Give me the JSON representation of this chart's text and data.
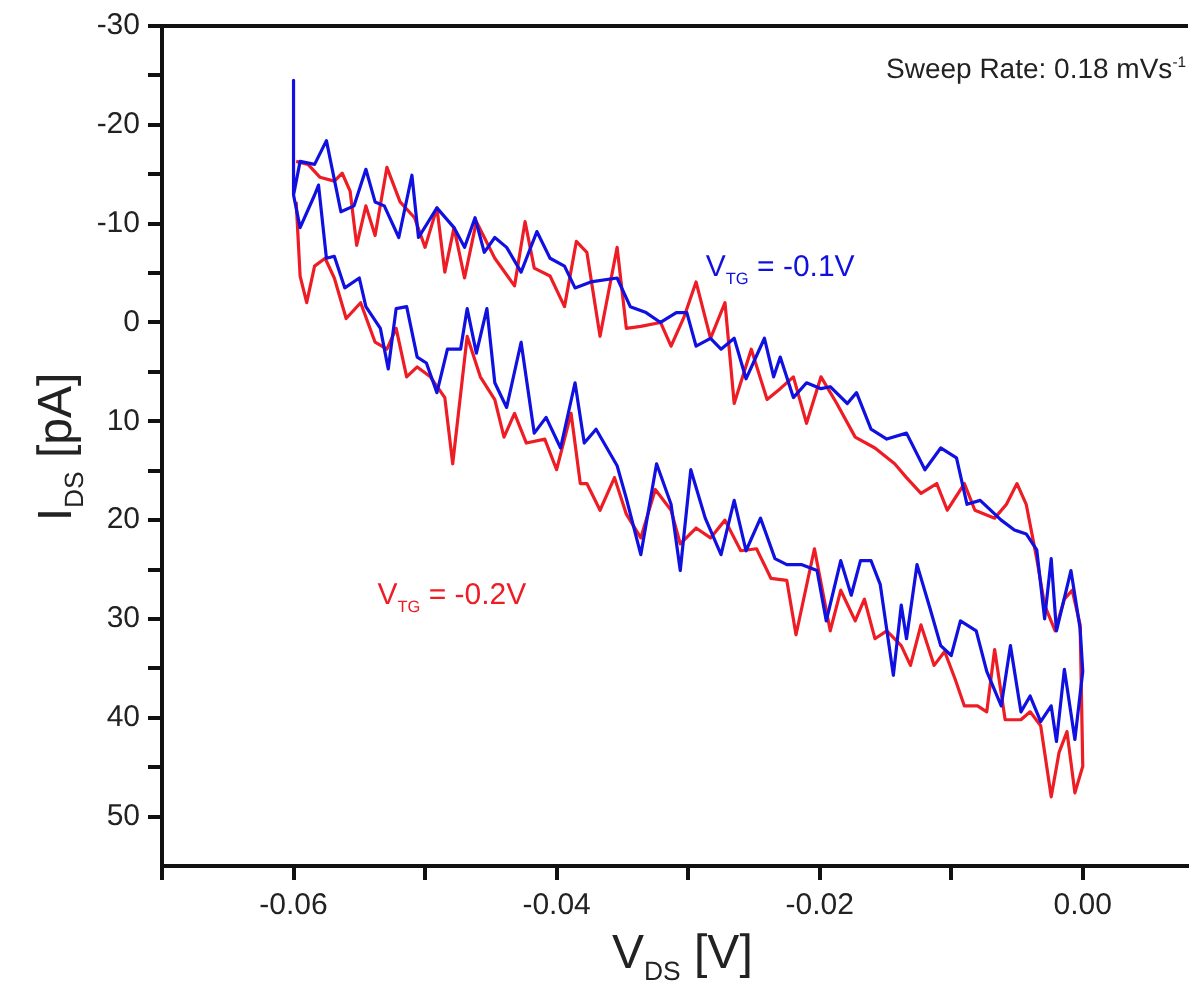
{
  "chart_data": {
    "type": "line",
    "xlabel": "V$_{DS}$ [V]",
    "ylabel": "I$_{DS}$ [pA]",
    "annotations": [
      "Sweep Rate: 0.18 mVs$^{-1}$"
    ],
    "xlim": [
      -0.07,
      0.008
    ],
    "ylim": [
      55,
      -30
    ],
    "xticks": [
      {
        "value": -0.07,
        "label": null
      },
      -0.06,
      {
        "value": -0.05,
        "label": null
      },
      -0.04,
      {
        "value": -0.03,
        "label": null
      },
      -0.02,
      {
        "value": -0.01,
        "label": null
      },
      {
        "value": 0,
        "label": "0.00"
      }
    ],
    "yticks": [
      -30,
      {
        "value": -25,
        "label": null
      },
      -20,
      {
        "value": -15,
        "label": null
      },
      -10,
      {
        "value": -5,
        "label": null
      },
      0,
      {
        "value": 5,
        "label": null
      },
      10,
      {
        "value": 15,
        "label": null
      },
      20,
      {
        "value": 25,
        "label": null
      },
      30,
      {
        "value": 35,
        "label": null
      },
      40,
      {
        "value": 45,
        "label": null
      },
      50
    ],
    "grid": false,
    "legend": false,
    "series": [
      {
        "name": "V$_{TG}$ = -0.1V",
        "color": "#1010e0",
        "x": [
          -0.06,
          -0.06,
          -0.0595,
          -0.0584,
          -0.0575,
          -0.0564,
          -0.0554,
          -0.0545,
          -0.0538,
          -0.0531,
          -0.052,
          -0.051,
          -0.0505,
          -0.0491,
          -0.0478,
          -0.047,
          -0.0462,
          -0.0455,
          -0.0447,
          -0.0438,
          -0.0427,
          -0.0415,
          -0.0405,
          -0.0394,
          -0.0386,
          -0.0374,
          -0.0354,
          -0.0344,
          -0.0332,
          -0.0321,
          -0.0309,
          -0.0301,
          -0.0294,
          -0.0283,
          -0.0275,
          -0.0265,
          -0.0256,
          -0.0242,
          -0.0235,
          -0.023,
          -0.022,
          -0.021,
          -0.0199,
          -0.0192,
          -0.0179,
          -0.0172,
          -0.0161,
          -0.0149,
          -0.0134,
          -0.012,
          -0.0108,
          -0.0096,
          -0.0088,
          -0.0078,
          -0.0062,
          -0.0052,
          -0.0043,
          -0.0035,
          -0.0029,
          -0.0024,
          -0.002,
          -0.0009,
          -0.0002,
          0,
          -0.0006,
          -0.0014,
          -0.002,
          -0.0024,
          -0.0032,
          -0.004,
          -0.0047,
          -0.0055,
          -0.0062,
          -0.0073,
          -0.0081,
          -0.0093,
          -0.01,
          -0.0108,
          -0.0116,
          -0.0126,
          -0.0134,
          -0.0138,
          -0.0144,
          -0.0154,
          -0.0161,
          -0.0169,
          -0.0176,
          -0.0184,
          -0.0195,
          -0.0202,
          -0.0214,
          -0.0225,
          -0.0234,
          -0.0245,
          -0.0256,
          -0.0265,
          -0.0275,
          -0.0287,
          -0.0298,
          -0.0306,
          -0.0313,
          -0.0324,
          -0.0336,
          -0.0347,
          -0.0354,
          -0.037,
          -0.0379,
          -0.0386,
          -0.0397,
          -0.0408,
          -0.0417,
          -0.0427,
          -0.0438,
          -0.0447,
          -0.0453,
          -0.0461,
          -0.0468,
          -0.0473,
          -0.0483,
          -0.0491,
          -0.0499,
          -0.0506,
          -0.0514,
          -0.0522,
          -0.0528,
          -0.0534,
          -0.0545,
          -0.055,
          -0.0561,
          -0.0569,
          -0.0575,
          -0.0581,
          -0.0584,
          -0.0595,
          -0.06
        ],
        "values": [
          -24.5,
          -12.9,
          -16.3,
          -16,
          -18.4,
          -11.2,
          -11.8,
          -15.5,
          -12.2,
          -11.8,
          -8.6,
          -14.9,
          -8.6,
          -11.6,
          -9.6,
          -7.6,
          -10.6,
          -7.1,
          -8.6,
          -7.6,
          -5.1,
          -9.2,
          -6.5,
          -5.7,
          -3.5,
          -4.1,
          -4.5,
          -1.6,
          -1,
          0,
          -1,
          -1,
          2.4,
          1.6,
          2.7,
          1.6,
          5.7,
          1.6,
          5.5,
          3.5,
          7.6,
          6.1,
          6.7,
          6.5,
          8.2,
          7.1,
          10.8,
          11.8,
          11.2,
          14.9,
          12.7,
          13.7,
          18.4,
          18,
          20,
          21,
          21.4,
          23,
          30,
          23.9,
          31.2,
          25.1,
          31,
          35.3,
          42.2,
          35.1,
          42.4,
          38.8,
          40.4,
          37.8,
          39.4,
          32.7,
          38.8,
          35.3,
          31.2,
          30.2,
          33.7,
          32.7,
          29,
          24.5,
          32,
          28.6,
          35.7,
          26.5,
          24.1,
          24.1,
          27.6,
          24.1,
          30.2,
          25.1,
          24.5,
          24.5,
          23.9,
          19.8,
          23.1,
          18,
          23.5,
          19.8,
          14.9,
          25.1,
          18.4,
          14.3,
          23.5,
          17.8,
          14.5,
          10.8,
          12.2,
          6.1,
          12.7,
          9.6,
          11.2,
          2,
          8.6,
          6.1,
          -1.4,
          3.1,
          -1.4,
          2.7,
          2.7,
          7.1,
          4.1,
          3.5,
          -1.6,
          -1.4,
          4.7,
          0.6,
          -1.6,
          -4.5,
          -3.5,
          -6.7,
          -6.5,
          -13.9,
          -12.9,
          -9.6,
          -12.9
        ]
      },
      {
        "name": "V$_{TG}$ = -0.2V",
        "color": "#ee1c24",
        "x": [
          -0.0598,
          -0.0589,
          -0.058,
          -0.0569,
          -0.0563,
          -0.0557,
          -0.0552,
          -0.0545,
          -0.0538,
          -0.0529,
          -0.0519,
          -0.0508,
          -0.05,
          -0.0491,
          -0.0485,
          -0.0478,
          -0.047,
          -0.0461,
          -0.0447,
          -0.0432,
          -0.0424,
          -0.0417,
          -0.0405,
          -0.0394,
          -0.0385,
          -0.0377,
          -0.0367,
          -0.0354,
          -0.0347,
          -0.0336,
          -0.0321,
          -0.0313,
          -0.0303,
          -0.0294,
          -0.0283,
          -0.0272,
          -0.0265,
          -0.0252,
          -0.024,
          -0.023,
          -0.022,
          -0.021,
          -0.0199,
          -0.0187,
          -0.0173,
          -0.0158,
          -0.0143,
          -0.0134,
          -0.0123,
          -0.0111,
          -0.0103,
          -0.009,
          -0.0082,
          -0.0067,
          -0.0058,
          -0.005,
          -0.0043,
          -0.0035,
          -0.0029,
          -0.0021,
          -0.0014,
          -0.0008,
          -0.0002,
          0,
          -0.0006,
          -0.0012,
          -0.0018,
          -0.0024,
          -0.0032,
          -0.004,
          -0.0047,
          -0.0059,
          -0.0067,
          -0.0073,
          -0.008,
          -0.009,
          -0.0097,
          -0.0105,
          -0.0113,
          -0.0123,
          -0.0131,
          -0.0138,
          -0.0149,
          -0.0158,
          -0.0166,
          -0.0173,
          -0.0184,
          -0.0192,
          -0.0204,
          -0.0218,
          -0.0225,
          -0.0237,
          -0.0248,
          -0.026,
          -0.0272,
          -0.0283,
          -0.0294,
          -0.0306,
          -0.0313,
          -0.0325,
          -0.0336,
          -0.0347,
          -0.0356,
          -0.0367,
          -0.0377,
          -0.0382,
          -0.0389,
          -0.04,
          -0.0409,
          -0.0423,
          -0.0432,
          -0.044,
          -0.0447,
          -0.0458,
          -0.0468,
          -0.0479,
          -0.0485,
          -0.0496,
          -0.0506,
          -0.0514,
          -0.0522,
          -0.0529,
          -0.0538,
          -0.0549,
          -0.056,
          -0.0569,
          -0.0576,
          -0.0584,
          -0.059,
          -0.0595,
          -0.0598
        ],
        "values": [
          -16.3,
          -16,
          -14.7,
          -14.3,
          -15.1,
          -13.3,
          -7.8,
          -11.8,
          -8.8,
          -15.7,
          -12.2,
          -10.6,
          -7.6,
          -11.6,
          -5.1,
          -9.6,
          -4.5,
          -10.2,
          -6.5,
          -3.7,
          -10.2,
          -5.5,
          -4.7,
          -1.6,
          -8.2,
          -7.1,
          1.4,
          -7.6,
          0.6,
          0.4,
          0,
          2.4,
          -0.6,
          -4.1,
          1.6,
          -2,
          8.2,
          2.7,
          7.8,
          6.7,
          5.5,
          10.2,
          5.5,
          8.2,
          11.6,
          12.7,
          14.3,
          15.7,
          17.3,
          16.3,
          19,
          16.3,
          19,
          19.8,
          18.4,
          16.3,
          18.4,
          23.9,
          28.6,
          31.2,
          28,
          27.1,
          30.6,
          44.9,
          47.6,
          41.4,
          43.5,
          48,
          40.8,
          39.4,
          40.2,
          40.2,
          33.1,
          39.4,
          38.8,
          38.8,
          36.1,
          33.3,
          34.7,
          30.6,
          34.7,
          32.7,
          31.2,
          32,
          28,
          30.2,
          27.1,
          31.2,
          22.9,
          31.6,
          26.1,
          25.9,
          22.9,
          23.1,
          20,
          21.8,
          20.8,
          22.4,
          19,
          16.9,
          21.8,
          19.4,
          15.7,
          19,
          16.3,
          16.3,
          9.2,
          14.9,
          11.8,
          12.2,
          9.2,
          11.6,
          7.8,
          5.5,
          1.4,
          14.3,
          7.6,
          5.5,
          4.5,
          5.5,
          0.6,
          2.7,
          2,
          -2,
          -0.4,
          -4.5,
          -6.5,
          -5.7,
          -2,
          -4.7,
          -12.2
        ]
      }
    ]
  }
}
